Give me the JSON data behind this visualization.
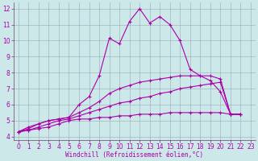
{
  "xlabel": "Windchill (Refroidissement éolien,°C)",
  "bg_color": "#cce8e8",
  "line_color": "#aa00aa",
  "grid_color": "#99aabb",
  "xlim": [
    -0.5,
    23.5
  ],
  "ylim": [
    3.8,
    12.4
  ],
  "xticks": [
    0,
    1,
    2,
    3,
    4,
    5,
    6,
    7,
    8,
    9,
    10,
    11,
    12,
    13,
    14,
    15,
    16,
    17,
    18,
    19,
    20,
    21,
    22,
    23
  ],
  "yticks": [
    4,
    5,
    6,
    7,
    8,
    9,
    10,
    11,
    12
  ],
  "series": [
    {
      "x": [
        0,
        1,
        2,
        3,
        4,
        5,
        6,
        7,
        8,
        9,
        10,
        11,
        12,
        13,
        14,
        15,
        16,
        17,
        18,
        19,
        20,
        21,
        22
      ],
      "y": [
        4.3,
        4.5,
        4.8,
        5.0,
        5.1,
        5.2,
        6.0,
        6.5,
        7.8,
        10.15,
        9.8,
        11.2,
        12.0,
        11.1,
        11.5,
        11.0,
        10.0,
        8.2,
        7.8,
        7.5,
        6.8,
        5.4,
        5.4
      ]
    },
    {
      "x": [
        0,
        1,
        2,
        3,
        4,
        5,
        6,
        7,
        8,
        9,
        10,
        11,
        12,
        13,
        14,
        15,
        16,
        17,
        18,
        19,
        20,
        21,
        22
      ],
      "y": [
        4.3,
        4.6,
        4.8,
        5.0,
        5.1,
        5.2,
        5.5,
        5.8,
        6.2,
        6.7,
        7.0,
        7.2,
        7.4,
        7.5,
        7.6,
        7.7,
        7.8,
        7.8,
        7.8,
        7.8,
        7.6,
        5.4,
        5.4
      ]
    },
    {
      "x": [
        0,
        1,
        2,
        3,
        4,
        5,
        6,
        7,
        8,
        9,
        10,
        11,
        12,
        13,
        14,
        15,
        16,
        17,
        18,
        19,
        20,
        21,
        22
      ],
      "y": [
        4.3,
        4.4,
        4.6,
        4.8,
        5.0,
        5.1,
        5.3,
        5.5,
        5.7,
        5.9,
        6.1,
        6.2,
        6.4,
        6.5,
        6.7,
        6.8,
        7.0,
        7.1,
        7.2,
        7.3,
        7.4,
        5.4,
        5.4
      ]
    },
    {
      "x": [
        0,
        1,
        2,
        3,
        4,
        5,
        6,
        7,
        8,
        9,
        10,
        11,
        12,
        13,
        14,
        15,
        16,
        17,
        18,
        19,
        20,
        21,
        22
      ],
      "y": [
        4.3,
        4.4,
        4.5,
        4.6,
        4.8,
        5.0,
        5.1,
        5.1,
        5.2,
        5.2,
        5.3,
        5.3,
        5.4,
        5.4,
        5.4,
        5.5,
        5.5,
        5.5,
        5.5,
        5.5,
        5.5,
        5.4,
        5.4
      ]
    }
  ],
  "tick_fontsize": 5.5,
  "xlabel_fontsize": 5.5
}
